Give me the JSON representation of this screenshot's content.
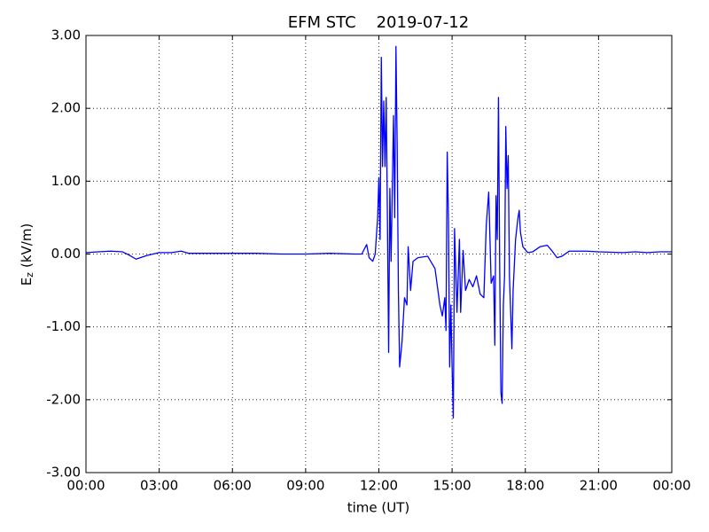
{
  "chart_data": {
    "type": "line",
    "title": "EFM STC    2019-07-12",
    "xlabel": "time (UT)",
    "ylabel": {
      "text": "E",
      "subscript": "z",
      "unit": "(kV/m)"
    },
    "xlim": [
      0,
      24
    ],
    "xticks": [
      {
        "value": 0,
        "label": "00:00"
      },
      {
        "value": 3,
        "label": "03:00"
      },
      {
        "value": 6,
        "label": "06:00"
      },
      {
        "value": 9,
        "label": "09:00"
      },
      {
        "value": 12,
        "label": "12:00"
      },
      {
        "value": 15,
        "label": "15:00"
      },
      {
        "value": 18,
        "label": "18:00"
      },
      {
        "value": 21,
        "label": "21:00"
      },
      {
        "value": 24,
        "label": "00:00"
      }
    ],
    "ylim": [
      -3,
      3
    ],
    "yticks": [
      {
        "value": -3,
        "label": "-3.00"
      },
      {
        "value": -2,
        "label": "-2.00"
      },
      {
        "value": -1,
        "label": "-1.00"
      },
      {
        "value": 0,
        "label": "0.00"
      },
      {
        "value": 1,
        "label": "1.00"
      },
      {
        "value": 2,
        "label": "2.00"
      },
      {
        "value": 3,
        "label": "3.00"
      }
    ],
    "grid": true,
    "x": [
      0,
      0.5,
      1,
      1.5,
      1.8,
      2.05,
      2.5,
      3,
      3.5,
      3.9,
      4.2,
      5,
      6,
      7,
      8,
      9,
      10,
      11,
      11.3,
      11.5,
      11.6,
      11.75,
      11.85,
      11.95,
      12.0,
      12.05,
      12.1,
      12.15,
      12.2,
      12.25,
      12.3,
      12.35,
      12.4,
      12.45,
      12.5,
      12.6,
      12.65,
      12.7,
      12.75,
      12.8,
      12.85,
      12.95,
      13.05,
      13.15,
      13.2,
      13.3,
      13.4,
      13.6,
      14.0,
      14.3,
      14.5,
      14.6,
      14.7,
      14.75,
      14.8,
      14.85,
      14.9,
      14.95,
      15.0,
      15.05,
      15.1,
      15.2,
      15.3,
      15.35,
      15.45,
      15.55,
      15.7,
      15.85,
      16.0,
      16.15,
      16.3,
      16.4,
      16.5,
      16.6,
      16.7,
      16.75,
      16.8,
      16.85,
      16.9,
      16.95,
      17.0,
      17.05,
      17.1,
      17.15,
      17.2,
      17.25,
      17.3,
      17.35,
      17.45,
      17.5,
      17.6,
      17.7,
      17.75,
      17.8,
      17.9,
      18.1,
      18.3,
      18.6,
      18.9,
      19.1,
      19.3,
      19.5,
      19.8,
      20.5,
      21,
      22,
      22.5,
      23,
      23.5,
      24
    ],
    "series": [
      {
        "name": "Ez",
        "color": "#0000ff",
        "values": [
          0.02,
          0.03,
          0.04,
          0.03,
          -0.02,
          -0.07,
          -0.02,
          0.02,
          0.02,
          0.04,
          0.01,
          0.01,
          0.01,
          0.01,
          0.0,
          0.0,
          0.01,
          0.0,
          0.0,
          0.13,
          -0.05,
          -0.1,
          0.0,
          0.5,
          1.05,
          0.2,
          2.7,
          1.2,
          2.1,
          1.2,
          2.15,
          0.5,
          -1.35,
          0.9,
          -0.1,
          1.9,
          0.5,
          2.85,
          1.5,
          -0.5,
          -1.55,
          -1.2,
          -0.6,
          -0.7,
          0.1,
          -0.5,
          -0.1,
          -0.05,
          -0.03,
          -0.2,
          -0.7,
          -0.85,
          -0.6,
          -1.05,
          1.4,
          0.5,
          -1.55,
          -0.7,
          -1.55,
          -2.25,
          0.35,
          -0.8,
          0.2,
          -0.8,
          0.05,
          -0.5,
          -0.35,
          -0.45,
          -0.3,
          -0.55,
          -0.6,
          0.4,
          0.85,
          -0.4,
          -0.3,
          -1.25,
          0.8,
          0.2,
          2.15,
          -0.2,
          -1.9,
          -2.05,
          -0.7,
          -0.3,
          1.75,
          0.9,
          1.35,
          -0.3,
          -1.3,
          -0.5,
          0.2,
          0.5,
          0.6,
          0.3,
          0.1,
          0.02,
          0.03,
          0.1,
          0.12,
          0.04,
          -0.05,
          -0.03,
          0.04,
          0.04,
          0.03,
          0.02,
          0.03,
          0.02,
          0.03,
          0.03
        ]
      }
    ]
  }
}
